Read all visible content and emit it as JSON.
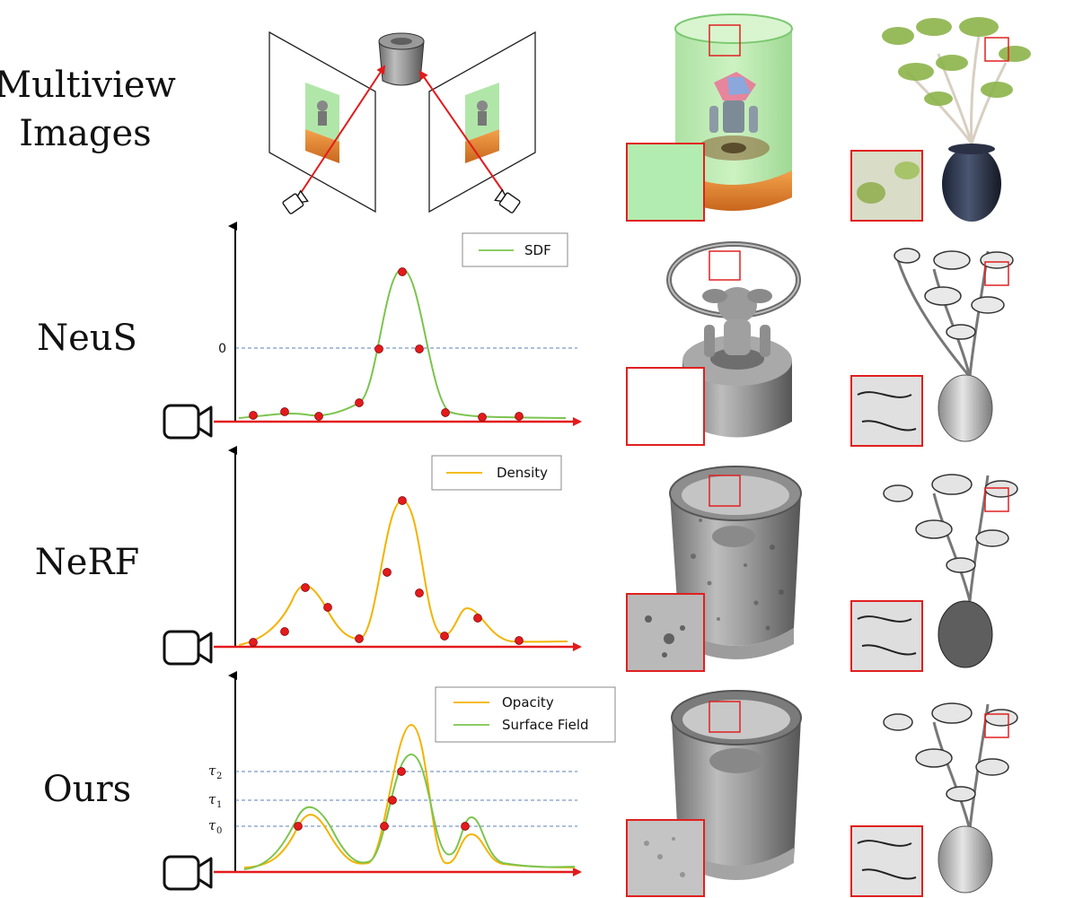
{
  "row_labels": {
    "multiview": [
      "Multiview",
      "Images"
    ],
    "neus": "NeuS",
    "nerf": "NeRF",
    "ours": "Ours"
  },
  "legends": {
    "neus": [
      "SDF"
    ],
    "nerf": [
      "Density"
    ],
    "ours": [
      "Opacity",
      "Surface Field"
    ]
  },
  "tick_labels": {
    "neus_zero": "0",
    "ours_thresholds": [
      {
        "base": "τ",
        "sub": "2"
      },
      {
        "base": "τ",
        "sub": "1"
      },
      {
        "base": "τ",
        "sub": "0"
      }
    ]
  },
  "colors": {
    "sdf": "#7cc44e",
    "density": "#f3b300",
    "opacity": "#f3b300",
    "surface_field": "#7cc44e",
    "ray": "#e41a1c",
    "sample_point": "#e41a1c",
    "threshold_line": "#5b7fb5",
    "zoom_box": "#e02020"
  }
}
